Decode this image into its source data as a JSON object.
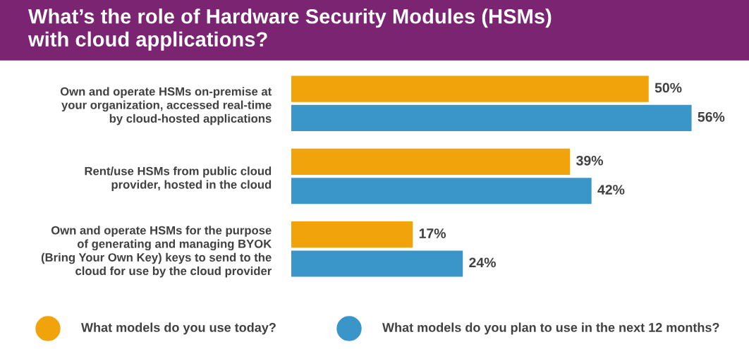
{
  "chart_data": {
    "type": "bar",
    "orientation": "horizontal",
    "title": "What’s the role of Hardware Security Modules (HSMs)\nwith cloud applications?",
    "categories": [
      "Own and operate HSMs on-premise at\nyour organization, accessed real-time\nby cloud-hosted applications",
      "Rent/use HSMs from public cloud\nprovider, hosted in the cloud",
      "Own and operate HSMs for the purpose\nof generating and managing BYOK\n(Bring Your Own Key) keys to send to the\ncloud for use by the cloud provider"
    ],
    "series": [
      {
        "name": "What models do you use today?",
        "color": "#f0a30a",
        "values": [
          50,
          39,
          17
        ],
        "value_labels": [
          "50%",
          "39%",
          "17%"
        ]
      },
      {
        "name": "What models do you plan to use in the next 12 months?",
        "color": "#3a95c9",
        "values": [
          56,
          42,
          24
        ],
        "value_labels": [
          "56%",
          "42%",
          "24%"
        ]
      }
    ],
    "legend": "bottom",
    "grid": false
  }
}
